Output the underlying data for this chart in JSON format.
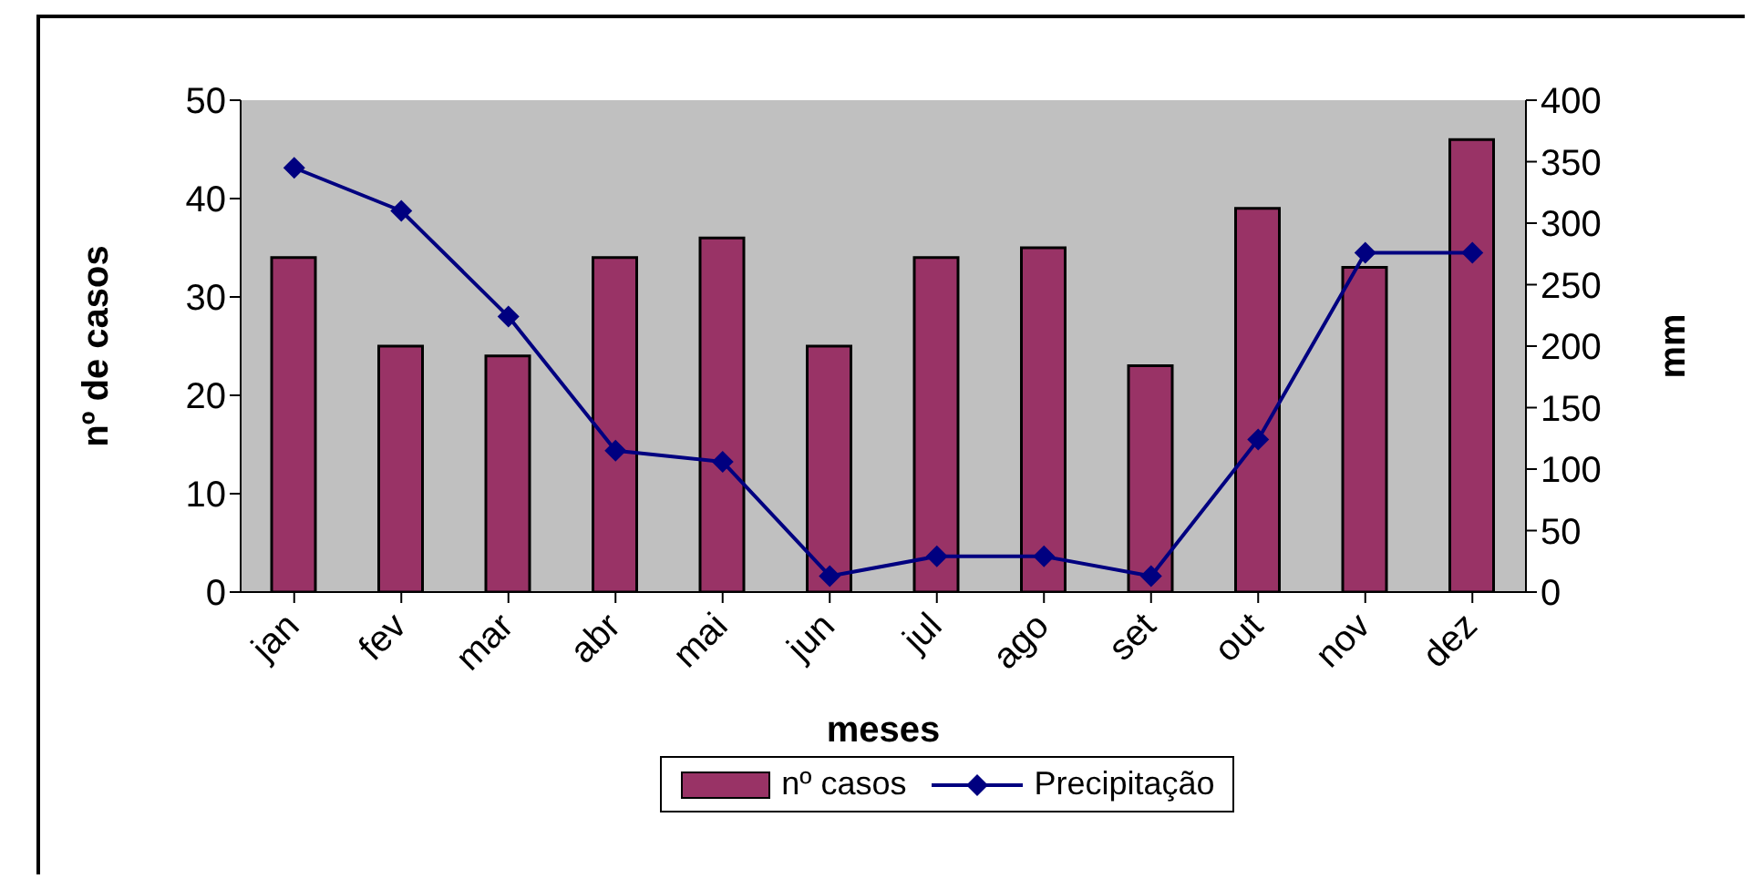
{
  "chart_data": {
    "type": "bar",
    "xlabel": "meses",
    "ylabel": "nº de casos",
    "y2label": "mm",
    "categories": [
      "jan",
      "fev",
      "mar",
      "abr",
      "mai",
      "jun",
      "jul",
      "ago",
      "set",
      "out",
      "nov",
      "dez"
    ],
    "series": [
      {
        "name": "nº casos",
        "color": "#993366",
        "values": [
          34,
          25,
          24,
          34,
          36,
          25,
          34,
          35,
          23,
          39,
          33,
          46
        ]
      },
      {
        "name": "Precipitação",
        "type": "line",
        "axis": "y2",
        "color": "#000080",
        "marker": "diamond",
        "values": [
          345,
          310,
          224,
          115,
          106,
          13,
          29,
          29,
          13,
          124,
          276,
          276
        ]
      }
    ],
    "ylim": [
      0,
      50
    ],
    "yticks": [
      0,
      10,
      20,
      30,
      40,
      50
    ],
    "y2lim": [
      0,
      400
    ],
    "y2ticks": [
      0,
      50,
      100,
      150,
      200,
      250,
      300,
      350,
      400
    ],
    "grid": false,
    "legend": "bottom"
  }
}
